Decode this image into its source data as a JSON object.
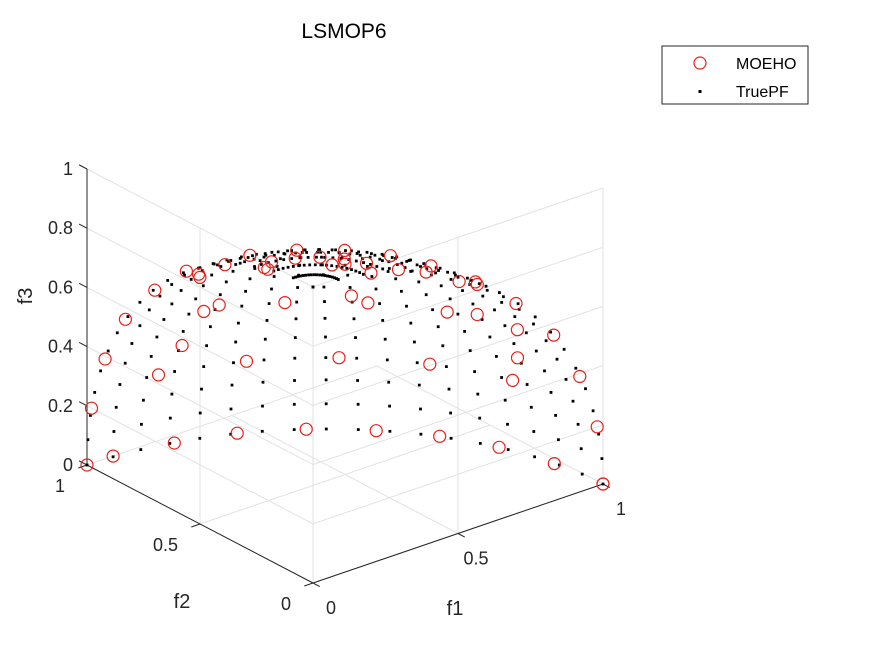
{
  "chart_data": {
    "type": "scatter",
    "title": "LSMOP6",
    "xlabel": "f1",
    "ylabel": "f2",
    "zlabel": "f3",
    "xlim": [
      0,
      1
    ],
    "ylim": [
      0,
      1
    ],
    "zlim": [
      0,
      1
    ],
    "xticks": [
      "0",
      "0.5",
      "1"
    ],
    "yticks": [
      "0",
      "0.5",
      "1"
    ],
    "zticks": [
      "0",
      "0.2",
      "0.4",
      "0.6",
      "0.8",
      "1"
    ],
    "grid": true,
    "legend": {
      "position": "top-right",
      "entries": [
        "MOEHO",
        "TruePF"
      ]
    },
    "colors": {
      "moeho": "#e8201a",
      "truepf": "#000000",
      "grid": "#e2e2e2",
      "axis": "#262626"
    },
    "series": [
      {
        "name": "MOEHO",
        "marker": "open-circle",
        "note_shape": "spherical front, x^2+y^2+z^2=1",
        "boundary_f1_f3": [
          [
            1,
            0
          ],
          [
            0.98,
            0.2
          ],
          [
            0.92,
            0.39
          ],
          [
            0.83,
            0.56
          ],
          [
            0.7,
            0.71
          ],
          [
            0.56,
            0.83
          ],
          [
            0.39,
            0.92
          ],
          [
            0.2,
            0.98
          ]
        ],
        "boundary_f2_f3": [
          [
            1,
            0
          ],
          [
            0.98,
            0.2
          ],
          [
            0.92,
            0.39
          ],
          [
            0.83,
            0.56
          ],
          [
            0.7,
            0.71
          ],
          [
            0.56,
            0.83
          ],
          [
            0.39,
            0.92
          ],
          [
            0.2,
            0.98
          ]
        ],
        "boundary_f1_f2": [
          [
            1,
            0
          ],
          [
            0.98,
            0.19
          ],
          [
            0.93,
            0.37
          ],
          [
            0.85,
            0.53
          ],
          [
            0.74,
            0.67
          ],
          [
            0.6,
            0.8
          ],
          [
            0.44,
            0.9
          ],
          [
            0.27,
            0.96
          ],
          [
            0.09,
            1
          ]
        ],
        "interior_f1_f2_f3": [
          [
            0.66,
            0.12,
            0.74
          ],
          [
            0.12,
            0.66,
            0.74
          ],
          [
            0.5,
            0.5,
            0.71
          ],
          [
            0.8,
            0.3,
            0.52
          ],
          [
            0.3,
            0.8,
            0.52
          ],
          [
            0.6,
            0.6,
            0.53
          ],
          [
            0.9,
            0.25,
            0.36
          ],
          [
            0.25,
            0.9,
            0.36
          ]
        ]
      },
      {
        "name": "TruePF",
        "marker": "dot",
        "note_shape": "spherical grid on the unit sphere octant, 19 azimuth lines x 19 elevation levels"
      }
    ]
  }
}
